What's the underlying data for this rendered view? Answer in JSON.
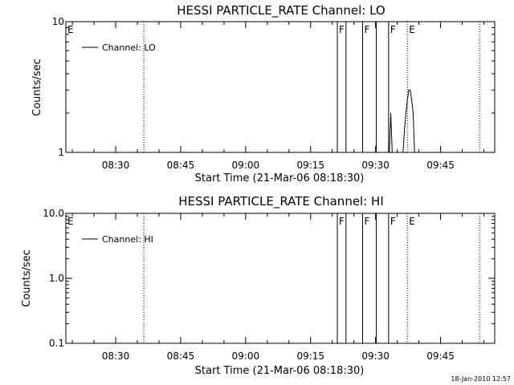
{
  "chart_data": [
    {
      "type": "line",
      "title": "HESSI PARTICLE_RATE Channel: LO",
      "xlabel": "Start Time (21-Mar-06 08:18:30)",
      "ylabel": "Counts/sec",
      "yscale": "log",
      "ylim": [
        1,
        10
      ],
      "xlim": [
        "08:18:30",
        "09:57:30"
      ],
      "yticks": [
        "1",
        "10"
      ],
      "xticks": [
        "08:30",
        "08:45",
        "09:00",
        "09:15",
        "09:30",
        "09:45"
      ],
      "grid": false,
      "legend": {
        "position": "top-left",
        "entries": [
          "Channel: LO"
        ]
      },
      "markers": [
        {
          "label": "E",
          "time": "08:18:30",
          "style": "solid"
        },
        {
          "label": "",
          "time": "08:36:30",
          "style": "dotted"
        },
        {
          "label": "F",
          "time": "09:21:10",
          "style": "solid"
        },
        {
          "label": "",
          "time": "09:23:10",
          "style": "solid"
        },
        {
          "label": "F",
          "time": "09:27:00",
          "style": "solid"
        },
        {
          "label": "",
          "time": "09:30:10",
          "style": "solid"
        },
        {
          "label": "F",
          "time": "09:33:00",
          "style": "solid"
        },
        {
          "label": "E",
          "time": "09:37:20",
          "style": "dotted"
        },
        {
          "label": "",
          "time": "09:54:00",
          "style": "dotted"
        }
      ],
      "series": [
        {
          "name": "Channel: LO",
          "points": [
            [
              "09:33:10",
              1.0
            ],
            [
              "09:33:30",
              2.0
            ],
            [
              "09:33:50",
              1.0
            ],
            [
              "09:36:20",
              1.0
            ],
            [
              "09:36:40",
              1.5
            ],
            [
              "09:37:00",
              2.0
            ],
            [
              "09:37:20",
              2.5
            ],
            [
              "09:37:40",
              3.0
            ],
            [
              "09:38:00",
              3.0
            ],
            [
              "09:38:20",
              2.5
            ],
            [
              "09:38:40",
              2.0
            ],
            [
              "09:39:00",
              1.0
            ]
          ]
        }
      ]
    },
    {
      "type": "line",
      "title": "HESSI PARTICLE_RATE Channel: HI",
      "xlabel": "Start Time (21-Mar-06 08:18:30)",
      "ylabel": "Counts/sec",
      "yscale": "log",
      "ylim": [
        0.1,
        10
      ],
      "xlim": [
        "08:18:30",
        "09:57:30"
      ],
      "yticks": [
        "0.1",
        "1.0",
        "10.0"
      ],
      "xticks": [
        "08:30",
        "08:45",
        "09:00",
        "09:15",
        "09:30",
        "09:45"
      ],
      "grid": false,
      "legend": {
        "position": "top-left",
        "entries": [
          "Channel: HI"
        ]
      },
      "markers": [
        {
          "label": "E",
          "time": "08:18:30",
          "style": "solid"
        },
        {
          "label": "",
          "time": "08:36:30",
          "style": "dotted"
        },
        {
          "label": "F",
          "time": "09:21:10",
          "style": "solid"
        },
        {
          "label": "",
          "time": "09:23:10",
          "style": "solid"
        },
        {
          "label": "F",
          "time": "09:27:00",
          "style": "solid"
        },
        {
          "label": "",
          "time": "09:30:10",
          "style": "solid"
        },
        {
          "label": "F",
          "time": "09:33:00",
          "style": "solid"
        },
        {
          "label": "E",
          "time": "09:37:20",
          "style": "dotted"
        },
        {
          "label": "",
          "time": "09:54:00",
          "style": "dotted"
        }
      ],
      "series": [
        {
          "name": "Channel: HI",
          "points": []
        }
      ]
    }
  ],
  "footer": {
    "timestamp": "18-Jan-2010 12:57"
  }
}
